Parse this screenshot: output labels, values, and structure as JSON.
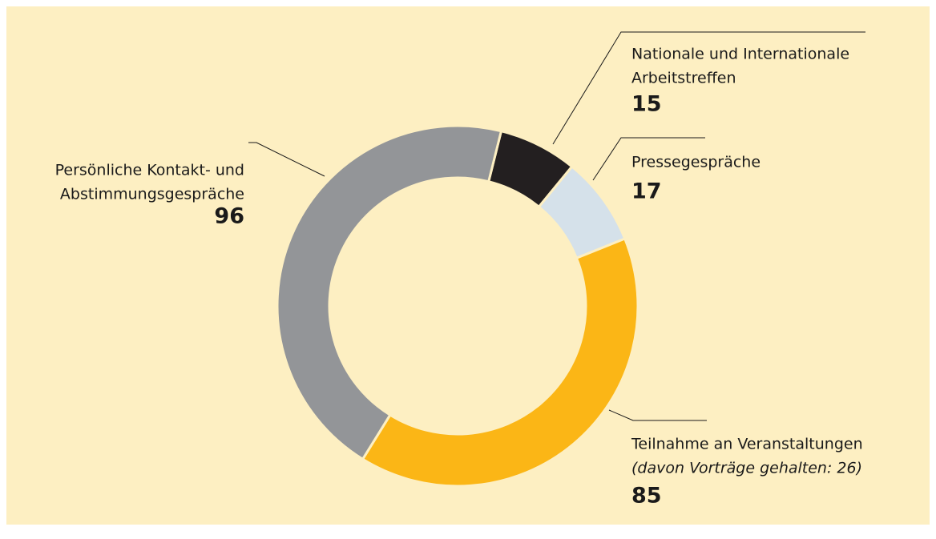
{
  "chart_data": {
    "type": "donut",
    "categories": [
      [
        "Nationale und Internationale",
        "Arbeitstreffen"
      ],
      [
        "Pressegespräche"
      ],
      [
        "Teilnahme an Veranstaltungen"
      ],
      [
        "Persönliche Kontakt- und",
        "Abstimmungsgespräche"
      ]
    ],
    "values": [
      15,
      17,
      85,
      96
    ],
    "colors": [
      "#231f20",
      "#d5e1ea",
      "#fbb616",
      "#939598"
    ],
    "annotations": [
      {
        "category": 2,
        "text": "(davon Vorträge gehalten: 26)"
      }
    ]
  }
}
